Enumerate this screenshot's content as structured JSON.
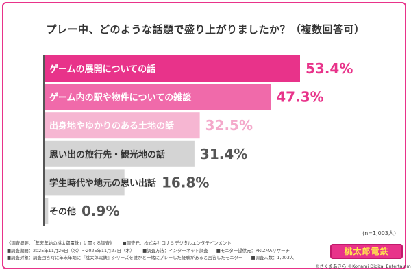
{
  "title": "プレー中、どのような話題で盛り上がりましたか？（複数回答可）",
  "chart_data": {
    "type": "bar",
    "orientation": "horizontal",
    "title": "プレー中、どのような話題で盛り上がりましたか？（複数回答可）",
    "unit": "%",
    "xlim": [
      0,
      100
    ],
    "categories": [
      "ゲームの展開についての話",
      "ゲーム内の駅や物件についての雑談",
      "出身地やゆかりのある土地の話",
      "思い出の旅行先・観光地の話",
      "学生時代や地元の思い出話",
      "その他"
    ],
    "values": [
      53.4,
      47.3,
      32.5,
      31.4,
      16.8,
      0.9
    ],
    "value_labels": [
      "53.4%",
      "47.3%",
      "32.5%",
      "31.4%",
      "16.8%",
      "0.9%"
    ],
    "bar_colors": [
      "#e8338a",
      "#f06aaa",
      "#f6b6d2",
      "#d4d4d4",
      "#d4d4d4",
      "#d4d4d4"
    ],
    "label_colors": [
      "#ffffff",
      "#ffffff",
      "#ffffff",
      "#333333",
      "#333333",
      "#333333"
    ],
    "value_colors": [
      "#e8338a",
      "#e8338a",
      "#f4a9cb",
      "#555555",
      "#555555",
      "#555555"
    ]
  },
  "sample_note": "(n=1,003人)",
  "footer": {
    "line1a": "《調査概要：「年末年始の桃太郎電鉄」に関する調査》",
    "line1b": "■調査元：株式会社コナミデジタルエンタテインメント",
    "line2a": "■調査期間：2025年11月26日（水）〜2025年11月27日（木）",
    "line2b": "■調査方法：インターネット調査",
    "line2c": "■モニター提供元：PRIZMAリサーチ",
    "line3a": "■調査対象：調査回答時に年末年始に『桃太郎電鉄』シリーズを誰かと一緒にプレーした経験があると回答したモニター",
    "line3b": "■調査人数：1,003人"
  },
  "logo_text": "桃太郎電鉄",
  "copyright": "©さくまあきら ©Konami Digital Entertainment"
}
